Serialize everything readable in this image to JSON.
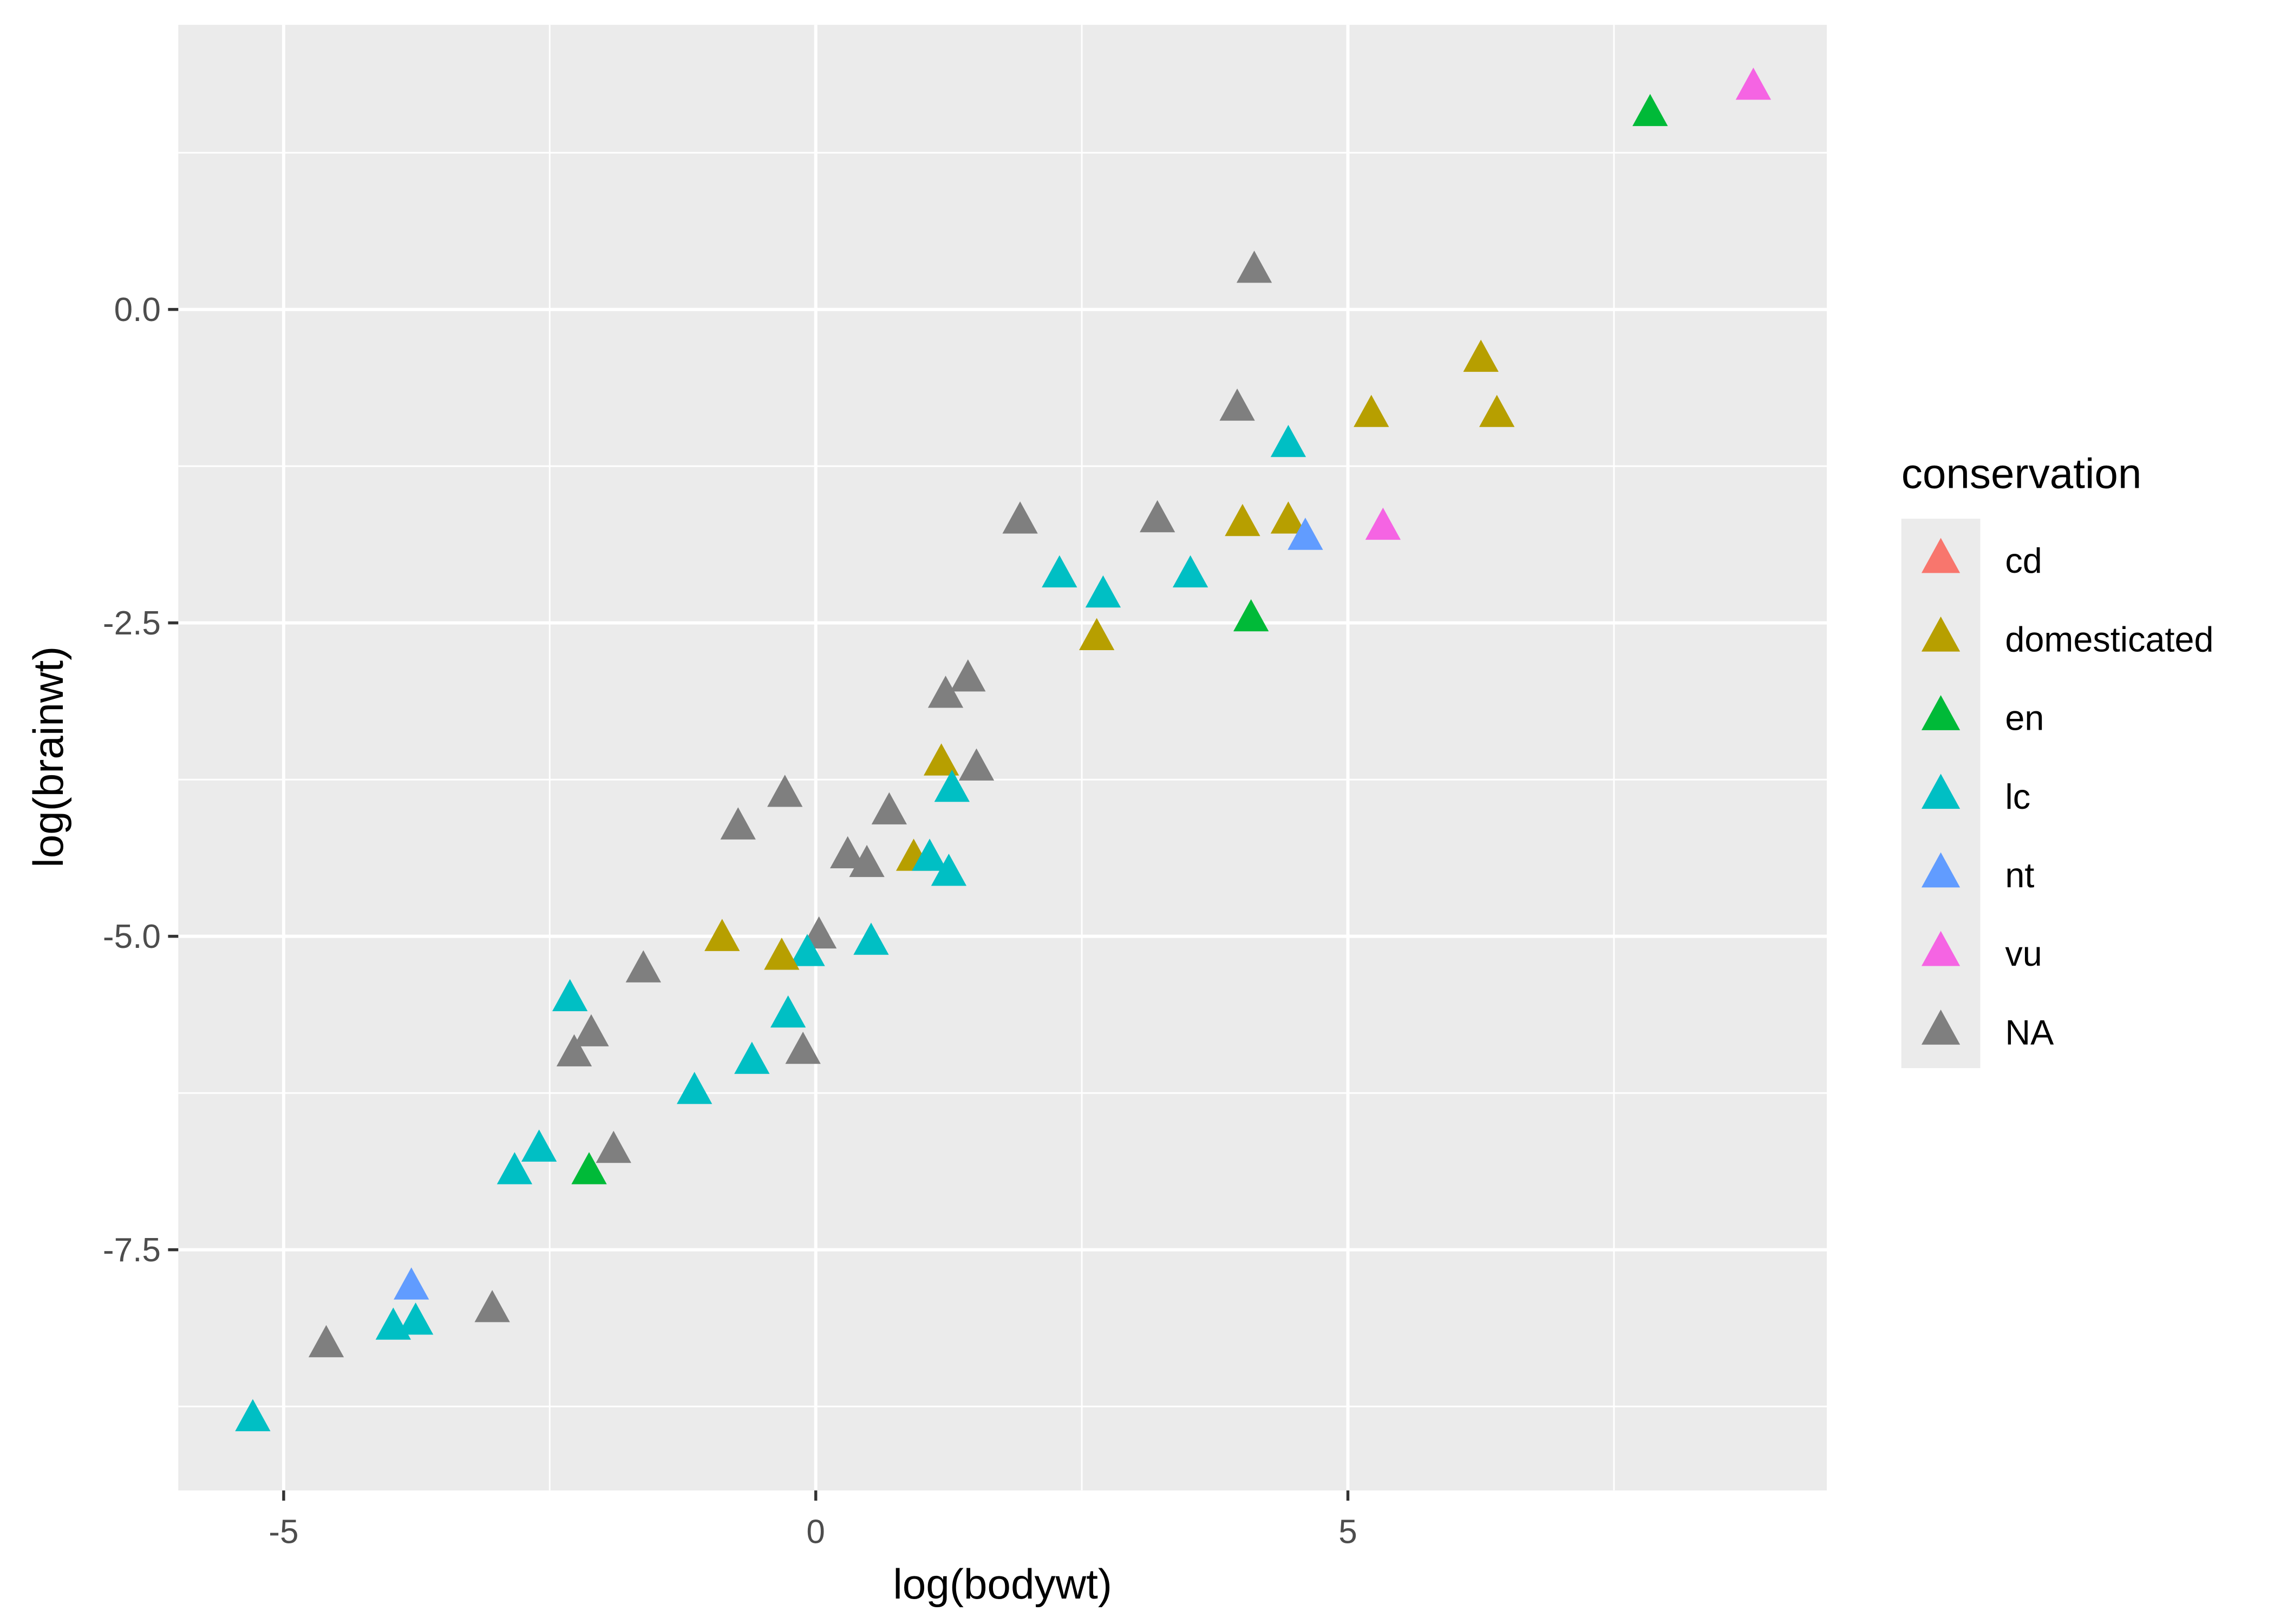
{
  "chart_data": {
    "type": "scatter",
    "title": "",
    "xlabel": "log(bodywt)",
    "ylabel": "log(brainwt)",
    "xlim": [
      -5.99,
      9.5
    ],
    "ylim": [
      -9.42,
      2.27
    ],
    "grid": true,
    "x_ticks": [
      -5,
      0,
      5
    ],
    "x_tick_labels": [
      "-5",
      "0",
      "5"
    ],
    "y_ticks": [
      0,
      -2.5,
      -5,
      -7.5
    ],
    "y_tick_labels": [
      "0.0",
      "-2.5",
      "-5.0",
      "-7.5"
    ],
    "legend": {
      "title": "conservation",
      "placement": "right",
      "entries": [
        {
          "label": "cd",
          "color": "#F8766D"
        },
        {
          "label": "domesticated",
          "color": "#B79F00"
        },
        {
          "label": "en",
          "color": "#00BA38"
        },
        {
          "label": "lc",
          "color": "#00BFC4"
        },
        {
          "label": "nt",
          "color": "#619CFF"
        },
        {
          "label": "vu",
          "color": "#F564E3"
        },
        {
          "label": "NA",
          "color": "#7F7F7F"
        }
      ]
    },
    "points": [
      {
        "x": 8.81,
        "y": 1.77,
        "group": "vu"
      },
      {
        "x": 7.84,
        "y": 1.56,
        "group": "en"
      },
      {
        "x": 4.12,
        "y": 0.31,
        "group": "NA"
      },
      {
        "x": 6.25,
        "y": -0.4,
        "group": "domesticated"
      },
      {
        "x": 5.22,
        "y": -0.84,
        "group": "domesticated"
      },
      {
        "x": 6.4,
        "y": -0.84,
        "group": "domesticated"
      },
      {
        "x": 3.96,
        "y": -0.79,
        "group": "NA"
      },
      {
        "x": 4.44,
        "y": -1.08,
        "group": "lc"
      },
      {
        "x": 1.92,
        "y": -1.69,
        "group": "NA"
      },
      {
        "x": 3.21,
        "y": -1.68,
        "group": "NA"
      },
      {
        "x": 4.01,
        "y": -1.71,
        "group": "domesticated"
      },
      {
        "x": 4.44,
        "y": -1.69,
        "group": "domesticated"
      },
      {
        "x": 4.6,
        "y": -1.82,
        "group": "nt"
      },
      {
        "x": 5.33,
        "y": -1.74,
        "group": "vu"
      },
      {
        "x": 2.29,
        "y": -2.12,
        "group": "lc"
      },
      {
        "x": 2.7,
        "y": -2.28,
        "group": "lc"
      },
      {
        "x": 3.52,
        "y": -2.12,
        "group": "lc"
      },
      {
        "x": 4.09,
        "y": -2.47,
        "group": "en"
      },
      {
        "x": 2.64,
        "y": -2.62,
        "group": "domesticated"
      },
      {
        "x": 1.22,
        "y": -3.08,
        "group": "NA"
      },
      {
        "x": 1.43,
        "y": -2.95,
        "group": "NA"
      },
      {
        "x": 1.18,
        "y": -3.62,
        "group": "domesticated"
      },
      {
        "x": 1.51,
        "y": -3.66,
        "group": "NA"
      },
      {
        "x": 1.28,
        "y": -3.83,
        "group": "lc"
      },
      {
        "x": -0.29,
        "y": -3.87,
        "group": "NA"
      },
      {
        "x": -0.73,
        "y": -4.13,
        "group": "NA"
      },
      {
        "x": 0.69,
        "y": -4.01,
        "group": "NA"
      },
      {
        "x": 0.3,
        "y": -4.36,
        "group": "NA"
      },
      {
        "x": 0.48,
        "y": -4.43,
        "group": "NA"
      },
      {
        "x": 0.92,
        "y": -4.38,
        "group": "domesticated"
      },
      {
        "x": 1.07,
        "y": -4.38,
        "group": "lc"
      },
      {
        "x": 1.25,
        "y": -4.5,
        "group": "lc"
      },
      {
        "x": -0.88,
        "y": -5.02,
        "group": "domesticated"
      },
      {
        "x": 0.03,
        "y": -5.0,
        "group": "NA"
      },
      {
        "x": -0.08,
        "y": -5.14,
        "group": "lc"
      },
      {
        "x": -0.32,
        "y": -5.17,
        "group": "domesticated"
      },
      {
        "x": 0.52,
        "y": -5.05,
        "group": "lc"
      },
      {
        "x": -1.62,
        "y": -5.27,
        "group": "NA"
      },
      {
        "x": -2.31,
        "y": -5.5,
        "group": "lc"
      },
      {
        "x": -0.26,
        "y": -5.63,
        "group": "lc"
      },
      {
        "x": -2.11,
        "y": -5.78,
        "group": "NA"
      },
      {
        "x": -2.27,
        "y": -5.94,
        "group": "NA"
      },
      {
        "x": -0.12,
        "y": -5.92,
        "group": "NA"
      },
      {
        "x": -0.6,
        "y": -6.0,
        "group": "lc"
      },
      {
        "x": -1.14,
        "y": -6.24,
        "group": "lc"
      },
      {
        "x": -2.6,
        "y": -6.7,
        "group": "lc"
      },
      {
        "x": -1.9,
        "y": -6.71,
        "group": "NA"
      },
      {
        "x": -2.83,
        "y": -6.88,
        "group": "lc"
      },
      {
        "x": -2.13,
        "y": -6.88,
        "group": "en"
      },
      {
        "x": -3.8,
        "y": -7.8,
        "group": "nt"
      },
      {
        "x": -3.04,
        "y": -7.98,
        "group": "NA"
      },
      {
        "x": -3.97,
        "y": -8.12,
        "group": "lc"
      },
      {
        "x": -3.76,
        "y": -8.08,
        "group": "lc"
      },
      {
        "x": -4.6,
        "y": -8.26,
        "group": "NA"
      },
      {
        "x": -5.29,
        "y": -8.85,
        "group": "lc"
      }
    ]
  }
}
